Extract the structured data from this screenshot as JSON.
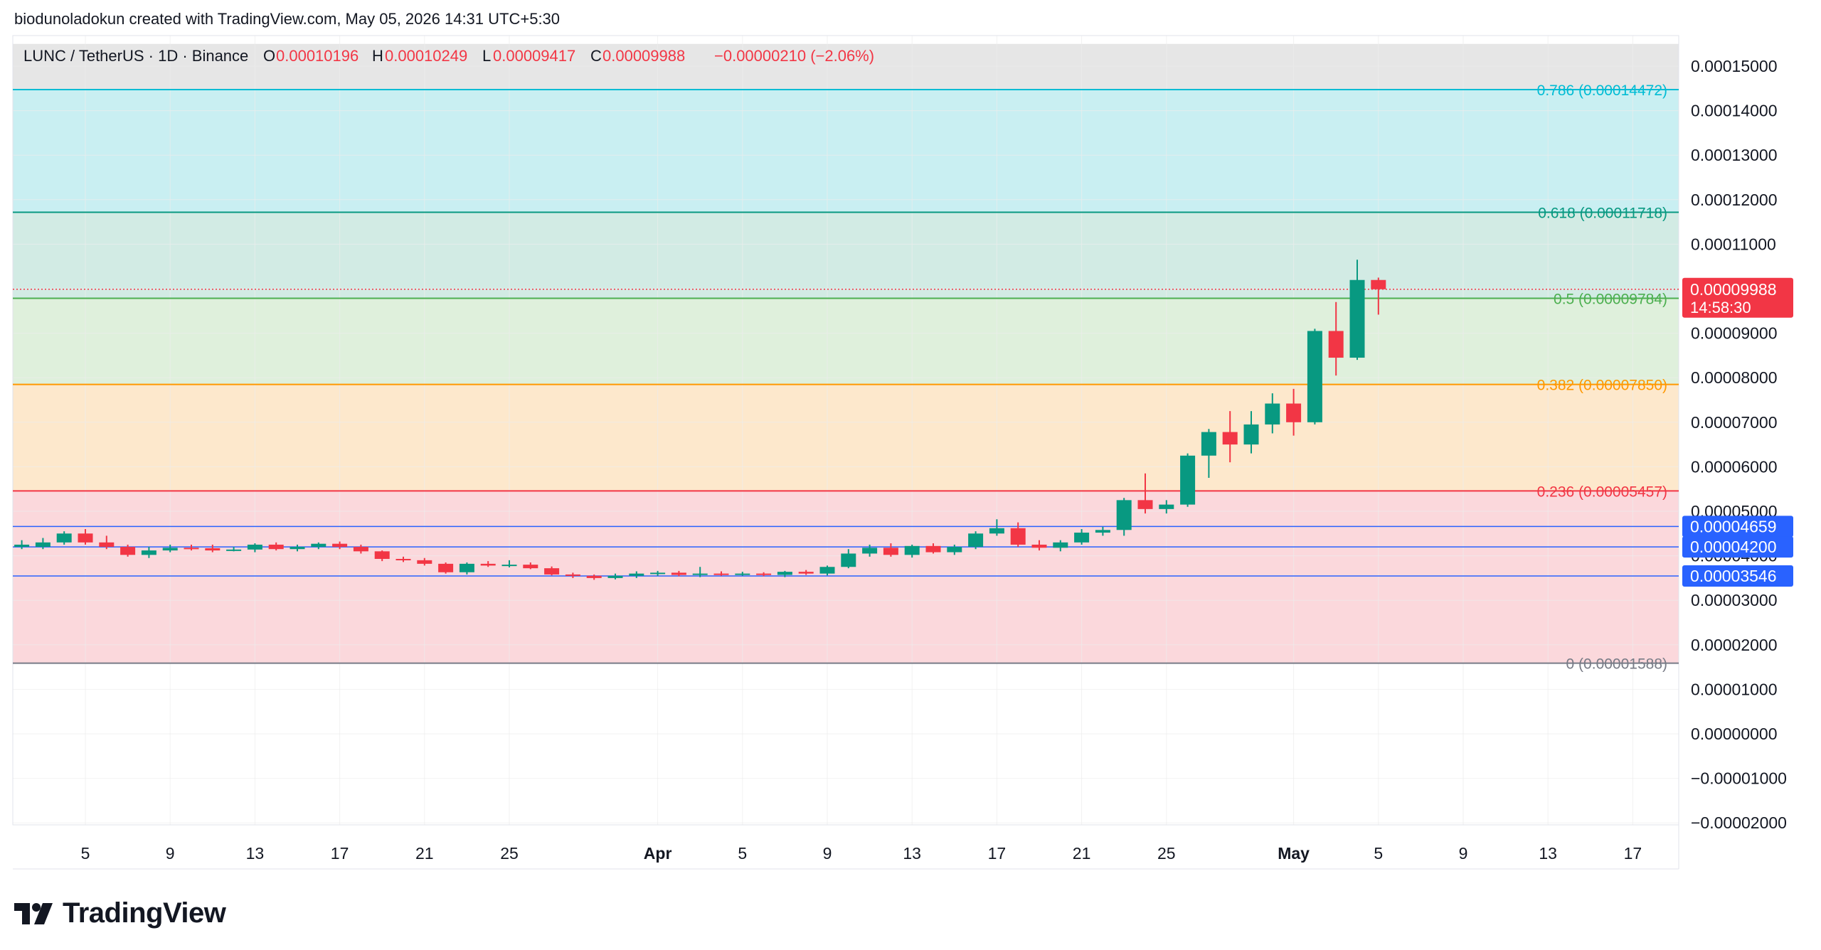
{
  "caption": "biodunoladokun created with TradingView.com, May 05, 2026 14:31 UTC+5:30",
  "brand": {
    "name": "TradingView",
    "icon": "tradingview-logo-icon"
  },
  "colors": {
    "up": "#089981",
    "down": "#f23645",
    "grid": "#ededed",
    "axis_text": "#131722",
    "header_bg": "#e6e6e6"
  },
  "chart_data": {
    "type": "candlestick",
    "title": "LUNC / TetherUS · 1D · Binance",
    "ohlc_header": {
      "o_label": "O",
      "o_value": "0.00010196",
      "h_label": "H",
      "h_value": "0.00010249",
      "l_label": "L",
      "l_value": "0.00009417",
      "c_label": "C",
      "c_value": "0.00009988",
      "change": "−0.00000210 (−2.06%)"
    },
    "ylim": [
      -2.25e-05,
      1.55e-05
    ],
    "y_scale_unit": 1e-05,
    "y_ticks": [
      "0.00015000",
      "0.00014000",
      "0.00013000",
      "0.00012000",
      "0.00011000",
      "0.00010000",
      "0.00009000",
      "0.00008000",
      "0.00007000",
      "0.00006000",
      "0.00005000",
      "0.00004000",
      "0.00003000",
      "0.00002000",
      "0.00001000",
      "0.00000000",
      "−0.00001000",
      "−0.00002000"
    ],
    "y_tick_values": [
      15,
      14,
      13,
      12,
      11,
      10,
      9,
      8,
      7,
      6,
      5,
      4,
      3,
      2,
      1,
      0,
      -1,
      -2
    ],
    "x_ticks": [
      {
        "label": "5",
        "day": 5
      },
      {
        "label": "9",
        "day": 9
      },
      {
        "label": "13",
        "day": 13
      },
      {
        "label": "17",
        "day": 17
      },
      {
        "label": "21",
        "day": 21
      },
      {
        "label": "25",
        "day": 25
      },
      {
        "label": "Apr",
        "day": 32,
        "bold": true
      },
      {
        "label": "5",
        "day": 36
      },
      {
        "label": "9",
        "day": 40
      },
      {
        "label": "13",
        "day": 44
      },
      {
        "label": "17",
        "day": 48
      },
      {
        "label": "21",
        "day": 52
      },
      {
        "label": "25",
        "day": 56
      },
      {
        "label": "May",
        "day": 62,
        "bold": true
      },
      {
        "label": "5",
        "day": 66
      },
      {
        "label": "9",
        "day": 70
      },
      {
        "label": "13",
        "day": 74
      },
      {
        "label": "17",
        "day": 78
      }
    ],
    "x_range_days": [
      1.8,
      81
    ],
    "fib_levels": [
      {
        "ratio": "0.786",
        "value": 14.472,
        "label": "0.786 (0.00014472)",
        "color": "#00bcd4"
      },
      {
        "ratio": "0.618",
        "value": 11.718,
        "label": "0.618 (0.00011718)",
        "color": "#089981"
      },
      {
        "ratio": "0.5",
        "value": 9.784,
        "label": "0.5 (0.00009784)",
        "color": "#4caf50"
      },
      {
        "ratio": "0.382",
        "value": 7.85,
        "label": "0.382 (0.00007850)",
        "color": "#ff9800"
      },
      {
        "ratio": "0.236",
        "value": 5.457,
        "label": "0.236 (0.00005457)",
        "color": "#f23645"
      },
      {
        "ratio": "0",
        "value": 1.588,
        "label": "0 (0.00001588)",
        "color": "#787b86"
      }
    ],
    "fib_zones": [
      {
        "from": 14.472,
        "to": 15.5,
        "color": "#e6e6e6"
      },
      {
        "from": 11.718,
        "to": 14.472,
        "color": "#c9eff2"
      },
      {
        "from": 9.784,
        "to": 11.718,
        "color": "#d2ebe4"
      },
      {
        "from": 7.85,
        "to": 9.784,
        "color": "#dff0dc"
      },
      {
        "from": 5.457,
        "to": 7.85,
        "color": "#fde8cc"
      },
      {
        "from": 1.588,
        "to": 5.457,
        "color": "#fbd8dc"
      }
    ],
    "horizontal_lines": [
      {
        "value": 4.659,
        "label": "0.00004659",
        "color": "#2962ff"
      },
      {
        "value": 4.2,
        "label": "0.00004200",
        "color": "#2962ff"
      },
      {
        "value": 3.546,
        "label": "0.00003546",
        "color": "#2962ff"
      }
    ],
    "last_price": {
      "value": 9.988,
      "label": "0.00009988",
      "countdown": "14:58:30",
      "color": "#f23645"
    },
    "candles": [
      {
        "d": 2,
        "o": 4.2,
        "h": 4.35,
        "l": 4.15,
        "c": 4.25
      },
      {
        "d": 3,
        "o": 4.2,
        "h": 4.4,
        "l": 4.15,
        "c": 4.3
      },
      {
        "d": 4,
        "o": 4.3,
        "h": 4.55,
        "l": 4.25,
        "c": 4.5
      },
      {
        "d": 5,
        "o": 4.5,
        "h": 4.6,
        "l": 4.25,
        "c": 4.3
      },
      {
        "d": 6,
        "o": 4.3,
        "h": 4.45,
        "l": 4.15,
        "c": 4.2
      },
      {
        "d": 7,
        "o": 4.2,
        "h": 4.25,
        "l": 3.98,
        "c": 4.02
      },
      {
        "d": 8,
        "o": 4.02,
        "h": 4.2,
        "l": 3.95,
        "c": 4.12
      },
      {
        "d": 9,
        "o": 4.12,
        "h": 4.25,
        "l": 4.08,
        "c": 4.18
      },
      {
        "d": 10,
        "o": 4.18,
        "h": 4.25,
        "l": 4.12,
        "c": 4.17
      },
      {
        "d": 11,
        "o": 4.17,
        "h": 4.25,
        "l": 4.08,
        "c": 4.12
      },
      {
        "d": 12,
        "o": 4.12,
        "h": 4.2,
        "l": 4.1,
        "c": 4.14
      },
      {
        "d": 13,
        "o": 4.14,
        "h": 4.28,
        "l": 4.08,
        "c": 4.25
      },
      {
        "d": 14,
        "o": 4.25,
        "h": 4.3,
        "l": 4.12,
        "c": 4.15
      },
      {
        "d": 15,
        "o": 4.15,
        "h": 4.25,
        "l": 4.1,
        "c": 4.2
      },
      {
        "d": 16,
        "o": 4.2,
        "h": 4.3,
        "l": 4.15,
        "c": 4.27
      },
      {
        "d": 17,
        "o": 4.27,
        "h": 4.32,
        "l": 4.15,
        "c": 4.2
      },
      {
        "d": 18,
        "o": 4.2,
        "h": 4.25,
        "l": 4.05,
        "c": 4.1
      },
      {
        "d": 19,
        "o": 4.1,
        "h": 4.12,
        "l": 3.88,
        "c": 3.93
      },
      {
        "d": 20,
        "o": 3.93,
        "h": 3.98,
        "l": 3.86,
        "c": 3.9
      },
      {
        "d": 21,
        "o": 3.9,
        "h": 3.95,
        "l": 3.78,
        "c": 3.82
      },
      {
        "d": 22,
        "o": 3.82,
        "h": 3.85,
        "l": 3.6,
        "c": 3.63
      },
      {
        "d": 23,
        "o": 3.63,
        "h": 3.85,
        "l": 3.58,
        "c": 3.82
      },
      {
        "d": 24,
        "o": 3.82,
        "h": 3.88,
        "l": 3.75,
        "c": 3.78
      },
      {
        "d": 25,
        "o": 3.78,
        "h": 3.9,
        "l": 3.74,
        "c": 3.8
      },
      {
        "d": 26,
        "o": 3.8,
        "h": 3.85,
        "l": 3.7,
        "c": 3.72
      },
      {
        "d": 27,
        "o": 3.72,
        "h": 3.76,
        "l": 3.56,
        "c": 3.58
      },
      {
        "d": 28,
        "o": 3.58,
        "h": 3.62,
        "l": 3.5,
        "c": 3.55
      },
      {
        "d": 29,
        "o": 3.55,
        "h": 3.58,
        "l": 3.46,
        "c": 3.5
      },
      {
        "d": 30,
        "o": 3.5,
        "h": 3.6,
        "l": 3.47,
        "c": 3.55
      },
      {
        "d": 31,
        "o": 3.55,
        "h": 3.65,
        "l": 3.5,
        "c": 3.6
      },
      {
        "d": 32,
        "o": 3.6,
        "h": 3.66,
        "l": 3.55,
        "c": 3.62
      },
      {
        "d": 33,
        "o": 3.62,
        "h": 3.66,
        "l": 3.54,
        "c": 3.57
      },
      {
        "d": 34,
        "o": 3.57,
        "h": 3.75,
        "l": 3.52,
        "c": 3.6
      },
      {
        "d": 35,
        "o": 3.6,
        "h": 3.65,
        "l": 3.55,
        "c": 3.58
      },
      {
        "d": 36,
        "o": 3.58,
        "h": 3.64,
        "l": 3.55,
        "c": 3.6
      },
      {
        "d": 37,
        "o": 3.6,
        "h": 3.63,
        "l": 3.54,
        "c": 3.57
      },
      {
        "d": 38,
        "o": 3.57,
        "h": 3.66,
        "l": 3.52,
        "c": 3.64
      },
      {
        "d": 39,
        "o": 3.64,
        "h": 3.68,
        "l": 3.57,
        "c": 3.6
      },
      {
        "d": 40,
        "o": 3.6,
        "h": 3.78,
        "l": 3.56,
        "c": 3.75
      },
      {
        "d": 41,
        "o": 3.75,
        "h": 4.15,
        "l": 3.72,
        "c": 4.05
      },
      {
        "d": 42,
        "o": 4.05,
        "h": 4.25,
        "l": 3.98,
        "c": 4.18
      },
      {
        "d": 43,
        "o": 4.18,
        "h": 4.28,
        "l": 3.98,
        "c": 4.02
      },
      {
        "d": 44,
        "o": 4.02,
        "h": 4.25,
        "l": 3.96,
        "c": 4.22
      },
      {
        "d": 45,
        "o": 4.22,
        "h": 4.28,
        "l": 4.05,
        "c": 4.08
      },
      {
        "d": 46,
        "o": 4.08,
        "h": 4.25,
        "l": 4.02,
        "c": 4.2
      },
      {
        "d": 47,
        "o": 4.2,
        "h": 4.55,
        "l": 4.15,
        "c": 4.5
      },
      {
        "d": 48,
        "o": 4.5,
        "h": 4.82,
        "l": 4.45,
        "c": 4.62
      },
      {
        "d": 49,
        "o": 4.62,
        "h": 4.75,
        "l": 4.2,
        "c": 4.25
      },
      {
        "d": 50,
        "o": 4.25,
        "h": 4.35,
        "l": 4.12,
        "c": 4.18
      },
      {
        "d": 51,
        "o": 4.18,
        "h": 4.35,
        "l": 4.1,
        "c": 4.3
      },
      {
        "d": 52,
        "o": 4.3,
        "h": 4.6,
        "l": 4.25,
        "c": 4.52
      },
      {
        "d": 53,
        "o": 4.52,
        "h": 4.65,
        "l": 4.45,
        "c": 4.58
      },
      {
        "d": 54,
        "o": 4.58,
        "h": 5.3,
        "l": 4.45,
        "c": 5.25
      },
      {
        "d": 55,
        "o": 5.25,
        "h": 5.85,
        "l": 4.95,
        "c": 5.05
      },
      {
        "d": 56,
        "o": 5.05,
        "h": 5.25,
        "l": 4.95,
        "c": 5.15
      },
      {
        "d": 57,
        "o": 5.15,
        "h": 6.3,
        "l": 5.1,
        "c": 6.25
      },
      {
        "d": 58,
        "o": 6.25,
        "h": 6.85,
        "l": 5.75,
        "c": 6.78
      },
      {
        "d": 59,
        "o": 6.78,
        "h": 7.25,
        "l": 6.1,
        "c": 6.5
      },
      {
        "d": 60,
        "o": 6.5,
        "h": 7.25,
        "l": 6.3,
        "c": 6.95
      },
      {
        "d": 61,
        "o": 6.95,
        "h": 7.65,
        "l": 6.75,
        "c": 7.42
      },
      {
        "d": 62,
        "o": 7.42,
        "h": 7.75,
        "l": 6.7,
        "c": 7.0
      },
      {
        "d": 63,
        "o": 7.0,
        "h": 9.1,
        "l": 6.95,
        "c": 9.05
      },
      {
        "d": 64,
        "o": 9.05,
        "h": 9.7,
        "l": 8.05,
        "c": 8.45
      },
      {
        "d": 65,
        "o": 8.45,
        "h": 10.65,
        "l": 8.4,
        "c": 10.196
      },
      {
        "d": 66,
        "o": 10.196,
        "h": 10.249,
        "l": 9.417,
        "c": 9.988
      }
    ]
  }
}
